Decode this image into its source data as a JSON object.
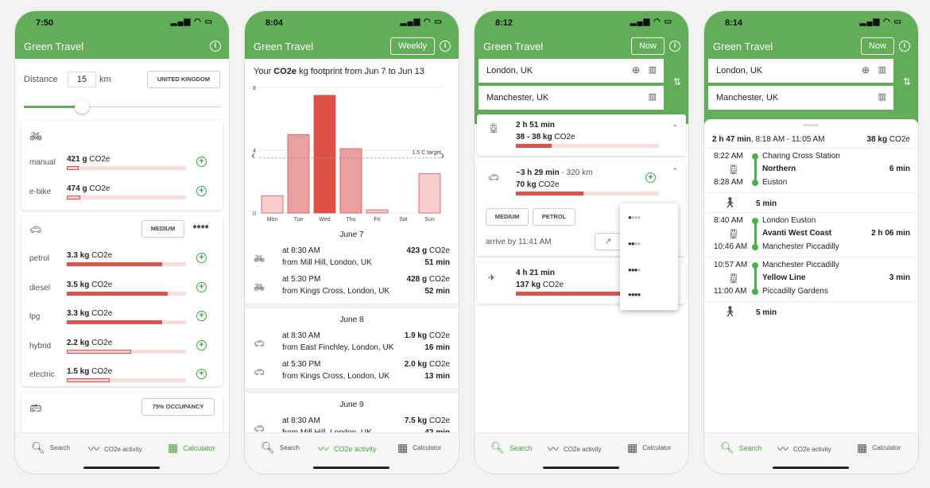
{
  "phones": [
    {
      "time": "7:50",
      "title": "Green Travel",
      "distance_label": "Distance",
      "distance_value": "15",
      "distance_unit": "km",
      "region_button": "UNITED KINGDOM",
      "bike_rows": [
        {
          "label": "manual",
          "value": "421 g",
          "unit": "CO2e"
        },
        {
          "label": "e-bike",
          "value": "474 g",
          "unit": "CO2e"
        }
      ],
      "car_size": "MEDIUM",
      "car_rows": [
        {
          "label": "petrol",
          "value": "3.3 kg",
          "unit": "CO2e"
        },
        {
          "label": "diesel",
          "value": "3.5 kg",
          "unit": "CO2e"
        },
        {
          "label": "lpg",
          "value": "3.3 kg",
          "unit": "CO2e"
        },
        {
          "label": "hybrid",
          "value": "2.2 kg",
          "unit": "CO2e"
        },
        {
          "label": "electric",
          "value": "1.5 kg",
          "unit": "CO2e"
        }
      ],
      "bus_occupancy": "75% OCCUPANCY"
    },
    {
      "time": "8:04",
      "title": "Green Travel",
      "mode_button": "Weekly",
      "footprint_prefix": "Your ",
      "footprint_bold": "CO2e",
      "footprint_suffix": " kg footprint from Jun 7 to Jun 13",
      "chart_data": {
        "type": "bar",
        "categories": [
          "Mon",
          "Tue",
          "Wed",
          "Thu",
          "Fri",
          "Sat",
          "Sun"
        ],
        "values": [
          1.1,
          5.0,
          7.5,
          4.1,
          0.2,
          0,
          2.5
        ],
        "ylim": [
          0,
          8
        ],
        "yticks": [
          "8",
          "4",
          "0"
        ],
        "reference_line": {
          "value": 3.5,
          "label": "1.5 C target"
        },
        "grid": true
      },
      "days": [
        {
          "date": "June 7",
          "trips": [
            {
              "mode": "bike",
              "time": "at 8:30 AM",
              "co2": "423 g",
              "unit": "CO2e",
              "from": "from Mill Hill, London, UK",
              "duration": "51 min"
            },
            {
              "mode": "bike",
              "time": "at 5:30 PM",
              "co2": "428 g",
              "unit": "CO2e",
              "from": "from Kings Cross, London, UK",
              "duration": "52 min"
            }
          ]
        },
        {
          "date": "June 8",
          "trips": [
            {
              "mode": "car",
              "time": "at 8:30 AM",
              "co2": "1.9 kg",
              "unit": "CO2e",
              "from": "from East Finchley, London, UK",
              "duration": "16 min"
            },
            {
              "mode": "car",
              "time": "at 5:30 PM",
              "co2": "2.0 kg",
              "unit": "CO2e",
              "from": "from Kings Cross, London, UK",
              "duration": "13 min"
            }
          ]
        },
        {
          "date": "June 9",
          "trips": [
            {
              "mode": "car",
              "time": "at 8:30 AM",
              "co2": "7.5 kg",
              "unit": "CO2e",
              "from": "from Mill Hill, London, UK",
              "duration": "42 min"
            }
          ]
        }
      ]
    },
    {
      "time": "8:12",
      "title": "Green Travel",
      "mode_button": "Now",
      "origin": "London, UK",
      "destination": "Manchester, UK",
      "train_route": {
        "duration": "2 h 51 min",
        "co2": "38 - 38 kg",
        "unit": "CO2e"
      },
      "car_route": {
        "duration": "~3 h 29 min",
        "distance": " - 320 km",
        "co2": "70 kg",
        "unit": "CO2e",
        "size": "MEDIUM",
        "fuel": "PETROL",
        "arrive": "arrive by 11:41 AM"
      },
      "plane_route": {
        "duration": "4 h 21 min",
        "co2": "137 kg",
        "unit": "CO2e"
      }
    },
    {
      "time": "8:14",
      "title": "Green Travel",
      "mode_button": "Now",
      "origin": "London, UK",
      "destination": "Manchester, UK",
      "summary": {
        "duration": "2 h 47 min",
        "times": ", 8:18 AM - 11:05 AM",
        "co2": "38 kg",
        "unit": "CO2e"
      },
      "legs": [
        {
          "dep_time": "8:22 AM",
          "dep": "Charing Cross Station",
          "line": "Northern",
          "arr_time": "8:28 AM",
          "arr": "Euston",
          "dur": "6 min"
        },
        {
          "walk": "5 min"
        },
        {
          "dep_time": "8:40 AM",
          "dep": "London Euston",
          "line": "Avanti West Coast",
          "arr_time": "10:46 AM",
          "arr": "Manchester Piccadilly",
          "dur": "2 h 06 min"
        },
        {
          "dep_time": "10:57 AM",
          "dep": "Manchester Piccadilly",
          "line": "Yellow Line",
          "arr_time": "11:00 AM",
          "arr": "Piccadilly Gardens",
          "dur": "3 min"
        },
        {
          "walk": "5 min"
        }
      ]
    }
  ],
  "tabs": [
    {
      "label": "Search"
    },
    {
      "label": "CO2e activity"
    },
    {
      "label": "Calculator"
    }
  ],
  "colors": {
    "brand": "#62ad58",
    "accent": "#4aa544",
    "bar": "#d9534f"
  }
}
